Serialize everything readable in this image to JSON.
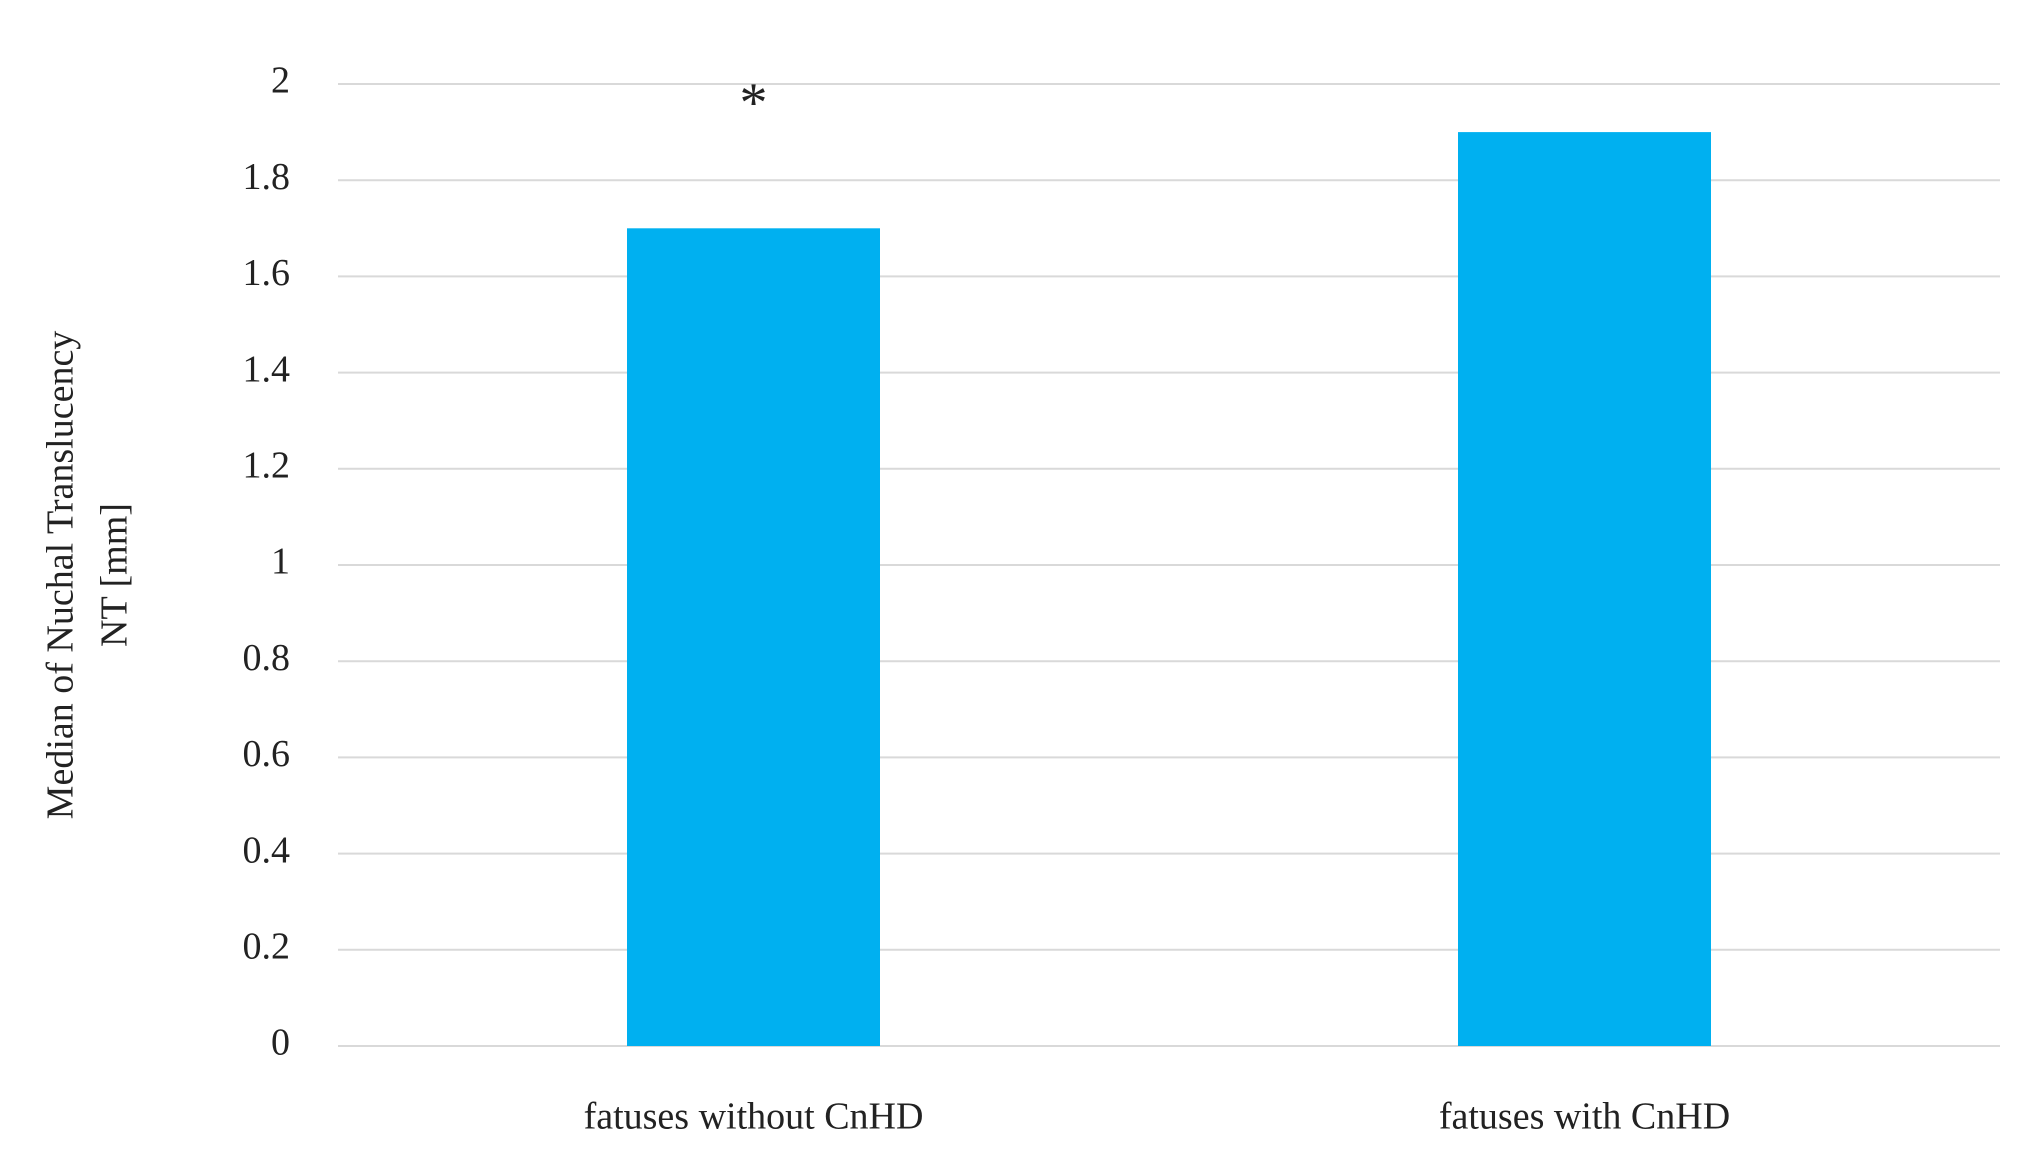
{
  "chart_data": {
    "type": "bar",
    "y_label": [
      "Median of Nuchal Translucency",
      "NT [mm]"
    ],
    "categories": [
      "fatuses without CnHD",
      "fatuses with CnHD"
    ],
    "values": [
      1.7,
      1.9
    ],
    "color": "#00b0f0",
    "annotations": [
      {
        "text": "*"
      }
    ],
    "ylim": [
      0,
      2
    ],
    "yticks": [
      0,
      0.2,
      0.4,
      0.6,
      0.8,
      1,
      1.2,
      1.4,
      1.6,
      1.8,
      2
    ],
    "grid": true
  }
}
